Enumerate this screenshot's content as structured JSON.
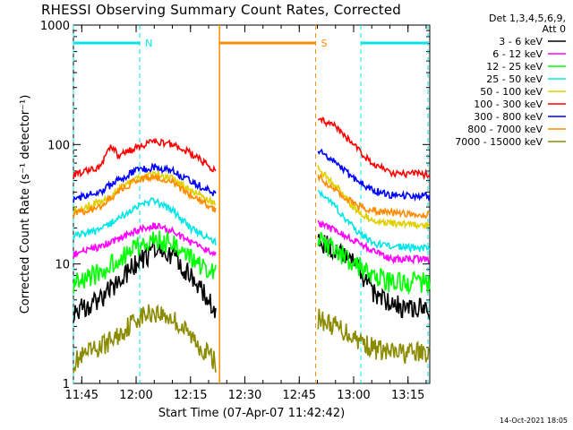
{
  "chart_data": {
    "type": "line",
    "title": "RHESSI Observing Summary Count Rates, Corrected",
    "xlabel": "Start Time (07-Apr-07 11:42:42)",
    "ylabel": "Corrected Count Rate (s⁻¹ detector⁻¹)",
    "y_scale": "log",
    "ylim": [
      1,
      1000
    ],
    "xlim": [
      "11:42:42",
      "13:21:00"
    ],
    "x_ticks": [
      "11:45",
      "12:00",
      "12:15",
      "12:30",
      "12:45",
      "13:00",
      "13:15"
    ],
    "y_ticks": [
      "1",
      "10",
      "100",
      "1000"
    ],
    "legend_header": [
      "Det 1,3,4,5,6,9,",
      "Att 0"
    ],
    "annotations": [
      {
        "label": "N",
        "color": "#00e5e5",
        "from": "11:42:42",
        "to": "12:01:00"
      },
      {
        "label": "S",
        "color": "#ff8c00",
        "from": "12:23:00",
        "to": "12:49:30"
      },
      {
        "label": "",
        "color": "#00e5e5",
        "from": "13:02:00",
        "to": "13:20:30"
      }
    ],
    "gap": [
      "12:23:00",
      "12:49:30"
    ],
    "series": [
      {
        "name": "3 - 6 keV",
        "color": "#000000",
        "x": [
          "11:42:42",
          "11:50",
          "11:55",
          "12:00",
          "12:05",
          "12:10",
          "12:15",
          "12:22",
          "12:50",
          "12:55",
          "13:00",
          "13:05",
          "13:10",
          "13:20"
        ],
        "values": [
          4,
          5,
          7,
          10,
          13,
          12,
          8,
          4,
          16,
          13,
          10,
          6,
          4.5,
          4.2
        ]
      },
      {
        "name": "6 - 12 keV",
        "color": "#ff00ff",
        "x": [
          "11:42:42",
          "11:50",
          "11:55",
          "12:00",
          "12:05",
          "12:10",
          "12:15",
          "12:22",
          "12:50",
          "12:55",
          "13:00",
          "13:05",
          "13:10",
          "13:20"
        ],
        "values": [
          12,
          14,
          16,
          19,
          21,
          19,
          15,
          12,
          22,
          19,
          16,
          13,
          11,
          11
        ]
      },
      {
        "name": "12 - 25 keV",
        "color": "#00ff00",
        "x": [
          "11:42:42",
          "11:50",
          "11:55",
          "12:00",
          "12:05",
          "12:10",
          "12:15",
          "12:22",
          "12:50",
          "12:55",
          "13:00",
          "13:05",
          "13:10",
          "13:20"
        ],
        "values": [
          7,
          8.5,
          11,
          14,
          16,
          15,
          11,
          8,
          16,
          13,
          10,
          8,
          7,
          7
        ]
      },
      {
        "name": "25 - 50 keV",
        "color": "#00e5e5",
        "x": [
          "11:42:42",
          "11:50",
          "11:55",
          "12:00",
          "12:05",
          "12:10",
          "12:15",
          "12:22",
          "12:50",
          "12:55",
          "13:00",
          "13:05",
          "13:10",
          "13:20"
        ],
        "values": [
          17,
          19,
          24,
          30,
          34,
          28,
          20,
          15,
          42,
          30,
          20,
          15,
          14,
          13.5
        ]
      },
      {
        "name": "50 - 100 keV",
        "color": "#e0d000",
        "x": [
          "11:42:42",
          "11:50",
          "11:55",
          "12:00",
          "12:05",
          "12:10",
          "12:15",
          "12:22",
          "12:50",
          "12:55",
          "13:00",
          "13:05",
          "13:10",
          "13:20"
        ],
        "values": [
          28,
          33,
          42,
          52,
          57,
          52,
          42,
          32,
          65,
          45,
          30,
          23,
          22,
          21
        ]
      },
      {
        "name": "100 - 300 keV",
        "color": "#ff0000",
        "x": [
          "11:42:42",
          "11:50",
          "11:53",
          "11:55",
          "12:00",
          "12:05",
          "12:10",
          "12:15",
          "12:22",
          "12:50",
          "12:55",
          "13:00",
          "13:05",
          "13:10",
          "13:20"
        ],
        "values": [
          55,
          65,
          100,
          80,
          95,
          105,
          100,
          85,
          60,
          170,
          140,
          100,
          70,
          58,
          56
        ]
      },
      {
        "name": "300 - 800 keV",
        "color": "#0000ff",
        "x": [
          "11:42:42",
          "11:50",
          "11:55",
          "12:00",
          "12:05",
          "12:10",
          "12:15",
          "12:22",
          "12:50",
          "12:55",
          "13:00",
          "13:05",
          "13:10",
          "13:20"
        ],
        "values": [
          35,
          40,
          50,
          60,
          65,
          60,
          50,
          38,
          90,
          70,
          52,
          42,
          38,
          37
        ]
      },
      {
        "name": "800 - 7000 keV",
        "color": "#ff8c00",
        "x": [
          "11:42:42",
          "11:50",
          "11:55",
          "12:00",
          "12:05",
          "12:10",
          "12:15",
          "12:22",
          "12:50",
          "12:55",
          "13:00",
          "13:05",
          "13:10",
          "13:20"
        ],
        "values": [
          26,
          30,
          40,
          50,
          54,
          48,
          38,
          28,
          55,
          42,
          32,
          28,
          27,
          26
        ]
      },
      {
        "name": "7000 - 15000 keV",
        "color": "#8b8b00",
        "x": [
          "11:42:42",
          "11:50",
          "11:55",
          "12:00",
          "12:05",
          "12:10",
          "12:15",
          "12:22",
          "12:50",
          "12:55",
          "13:00",
          "13:05",
          "13:10",
          "13:20"
        ],
        "values": [
          1.5,
          2,
          2.5,
          3.5,
          4,
          3.5,
          2.5,
          1.5,
          3.5,
          3,
          2.5,
          2,
          1.8,
          1.8
        ]
      }
    ]
  },
  "timestamp": "14-Oct-2021 18:05"
}
